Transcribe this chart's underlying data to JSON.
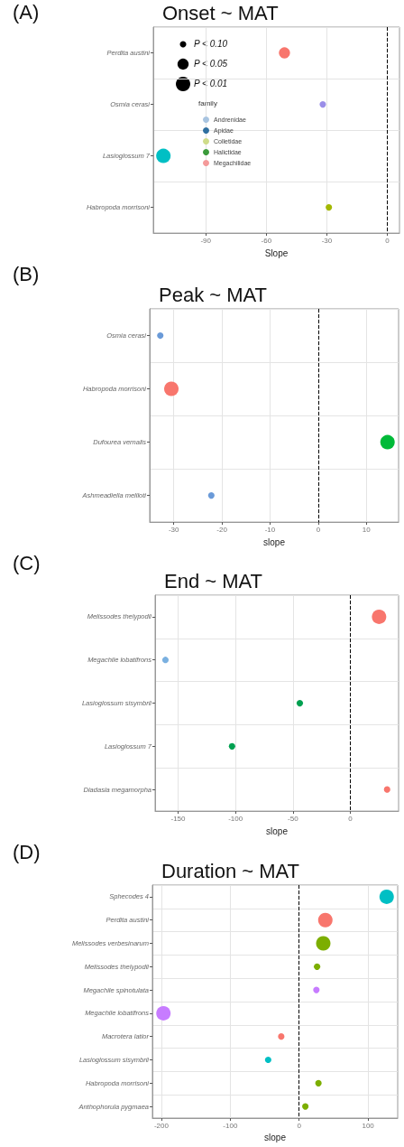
{
  "chart_data": [
    {
      "type": "bubble",
      "orientation": "horizontal",
      "title": "Onset ~ MAT",
      "annotations": [
        "(A)"
      ],
      "xlabel": "Slope",
      "categories": [
        "Perdita austini",
        "Osmia cerasi",
        "Lasioglossum 7",
        "Habropoda morrisoni"
      ],
      "series": [
        {
          "values": [
            -51,
            -32,
            -111,
            -29
          ],
          "sizes": [
            0.6,
            0.2,
            1,
            0.2
          ],
          "colors": [
            "#f8766d",
            "#9a8ee8",
            "#00bfc4",
            "#a3b800"
          ]
        },
        {
          "name": "Andrenidae",
          "color": "#a8c4e0",
          "values": [
            null,
            null,
            null,
            null
          ]
        },
        {
          "name": "Apidae",
          "color": "#2f6fa0",
          "values": [
            null,
            null,
            null,
            null
          ]
        },
        {
          "name": "Colletidae",
          "color": "#cfdc8a",
          "values": [
            null,
            null,
            null,
            null
          ]
        },
        {
          "name": "Halictidae",
          "color": "#3a9a3a",
          "values": [
            null,
            null,
            null,
            null
          ]
        },
        {
          "name": "Megachilidae",
          "color": "#f49a9a",
          "values": [
            null,
            null,
            null,
            null
          ]
        }
      ],
      "size_legend": [
        {
          "value": 0.2,
          "label": "P < 0.10"
        },
        {
          "value": 0.6,
          "label": "P < 0.05"
        },
        {
          "value": 1,
          "label": "P < 0.01"
        }
      ],
      "legend": "left",
      "legend_title": "family",
      "xlim": [
        -116,
        6
      ],
      "xticks": [
        -90,
        -60,
        -30,
        0
      ],
      "grid": true,
      "ref_lines": [
        {
          "axis": "x",
          "value": 0,
          "color": "#000000",
          "line_style": "dashed"
        }
      ]
    },
    {
      "type": "bubble",
      "orientation": "horizontal",
      "title": "Peak ~ MAT",
      "annotations": [
        "(B)"
      ],
      "xlabel": "slope",
      "categories": [
        "Osmia cerasi",
        "Habropoda morrisoni",
        "Dufourea vernalis",
        "Ashmeadiella meliloti"
      ],
      "series": [
        {
          "values": [
            -32.8,
            -30.5,
            14.4,
            -22.2
          ],
          "sizes": [
            0.2,
            1,
            1,
            0.2
          ],
          "colors": [
            "#6a9ad8",
            "#f8766d",
            "#00ba38",
            "#6a9ad8"
          ]
        }
      ],
      "xlim": [
        -35,
        16.7
      ],
      "xticks": [
        -30,
        -20,
        -10,
        0,
        10
      ],
      "grid": true,
      "ref_lines": [
        {
          "axis": "x",
          "value": 0,
          "color": "#000000",
          "line_style": "dashed"
        }
      ]
    },
    {
      "type": "bubble",
      "orientation": "horizontal",
      "title": "End ~ MAT",
      "annotations": [
        "(C)"
      ],
      "xlabel": "slope",
      "categories": [
        "Melissodes thelypodii",
        "Megachile lobatifrons",
        "Lasioglossum sisymbrii",
        "Lasioglossum 7",
        "Diadasia megamorpha"
      ],
      "series": [
        {
          "values": [
            25,
            -161,
            -44,
            -103,
            32
          ],
          "sizes": [
            1,
            0.2,
            0.2,
            0.2,
            0.2
          ],
          "colors": [
            "#f8766d",
            "#7ab0e0",
            "#00a050",
            "#00a050",
            "#f8766d"
          ]
        }
      ],
      "xlim": [
        -170,
        42
      ],
      "xticks": [
        -150,
        -100,
        -50,
        0
      ],
      "grid": true,
      "ref_lines": [
        {
          "axis": "x",
          "value": 0,
          "color": "#000000",
          "line_style": "dashed"
        }
      ]
    },
    {
      "type": "bubble",
      "orientation": "horizontal",
      "title": "Duration ~ MAT",
      "annotations": [
        "(D)"
      ],
      "xlabel": "slope",
      "categories": [
        "Sphecodes 4",
        "Perdita austini",
        "Melissodes verbesinarum",
        "Melissodes thelypodii",
        "Megachile spinotulata",
        "Megachile lobatifrons",
        "Macrotera latior",
        "Lasioglossum sisymbrii",
        "Habropoda morrisoni",
        "Anthophorula pygmaea"
      ],
      "series": [
        {
          "values": [
            127,
            38,
            35,
            26,
            25,
            -197,
            -26,
            -45,
            28,
            9
          ],
          "sizes": [
            1,
            1,
            1,
            0.2,
            0.2,
            1,
            0.2,
            0.2,
            0.2,
            0.2
          ],
          "colors": [
            "#00bfc4",
            "#f8766d",
            "#7cae00",
            "#7cae00",
            "#c77cff",
            "#c77cff",
            "#f8766d",
            "#00bfc4",
            "#7cae00",
            "#7cae00"
          ]
        }
      ],
      "xlim": [
        -213,
        143
      ],
      "xticks": [
        -200,
        -100,
        0,
        100
      ],
      "grid": true,
      "ref_lines": [
        {
          "axis": "x",
          "value": 0,
          "color": "#000000",
          "line_style": "dashed"
        }
      ]
    }
  ]
}
